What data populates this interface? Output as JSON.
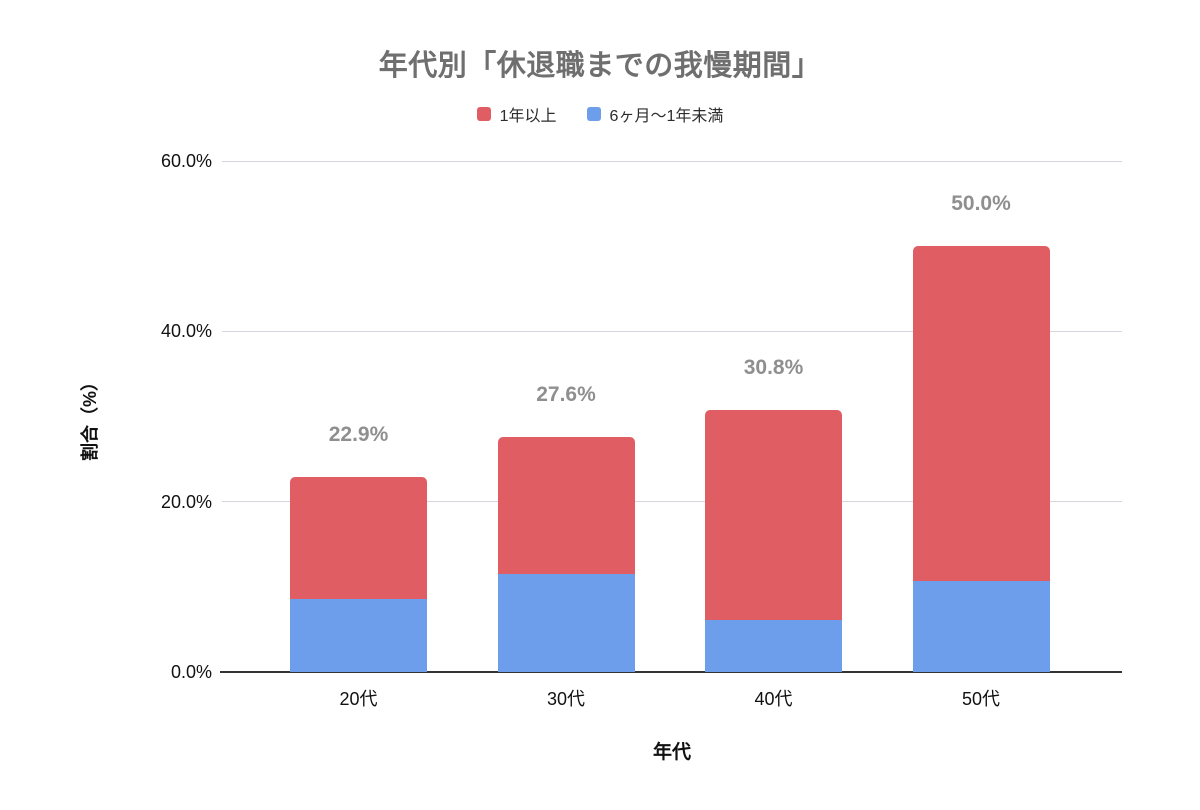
{
  "chart_data": {
    "type": "bar",
    "stacked": true,
    "title": "年代別「休退職までの我慢期間」",
    "xlabel": "年代",
    "ylabel": "割合（%）",
    "categories": [
      "20代",
      "30代",
      "40代",
      "50代"
    ],
    "series": [
      {
        "name": "1年以上",
        "color": "#e05d64",
        "values": [
          14.3,
          16.1,
          24.7,
          39.3
        ]
      },
      {
        "name": "6ヶ月〜1年未満",
        "color": "#6d9eeb",
        "values": [
          8.6,
          11.5,
          6.1,
          10.7
        ]
      }
    ],
    "totals": [
      22.9,
      27.6,
      30.8,
      50.0
    ],
    "total_labels": [
      "22.9%",
      "27.6%",
      "30.8%",
      "50.0%"
    ],
    "y_ticks": [
      {
        "value": 0,
        "label": "0.0%"
      },
      {
        "value": 20,
        "label": "20.0%"
      },
      {
        "value": 40,
        "label": "40.0%"
      },
      {
        "value": 60,
        "label": "60.0%"
      }
    ],
    "ylim": [
      0,
      60
    ],
    "grid": true,
    "legend_position": "top"
  },
  "colors": {
    "background": "#ffffff",
    "title_text": "#6f6f6f",
    "data_label_text": "#8f8f8f",
    "axis_text": "#111111",
    "gridline": "#d9d5de",
    "axis_line": "#333333"
  }
}
